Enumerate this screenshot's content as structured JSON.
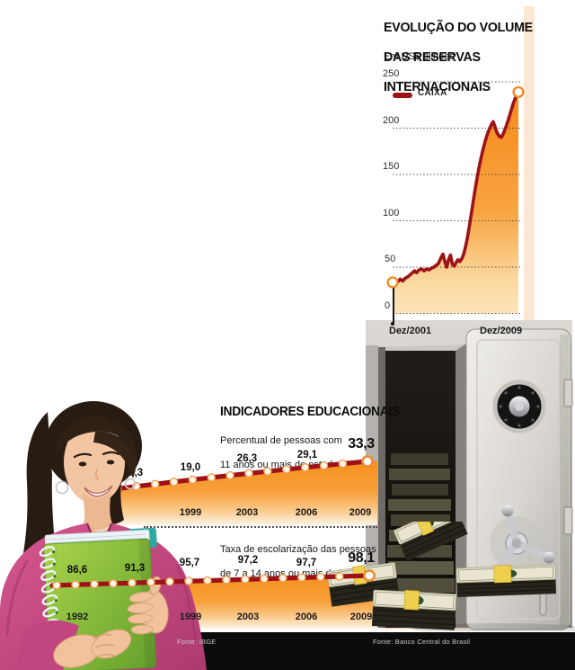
{
  "education": {
    "heading": "INDICADORES EDUCACIONAIS"
  },
  "footer": {
    "sources": [
      "Fonte: IBGE",
      "Fonte: Banco Central do Brasil"
    ]
  },
  "colors": {
    "line_dark_red": "#9C1217",
    "area_orange": "#F5891B",
    "accent_peach": "#FCE8D2",
    "footer_black": "#0C0C0C",
    "bead_ring": "#F19A49"
  },
  "chart_data": [
    {
      "type": "area",
      "title_lines": [
        "EVOLUÇÃO DO VOLUME",
        "DAS RESERVAS",
        "INTERNACIONAIS"
      ],
      "subtitle": "Em US$ bilhões",
      "legend_label": "CAIXA",
      "legend_position": "top-left-inside",
      "grid": "dotted-horizontal",
      "ylim": [
        0,
        250
      ],
      "y_tick_labels": [
        "250",
        "200",
        "150",
        "100",
        "50",
        "0"
      ],
      "x_start_label": "Dez/2001",
      "x_end_label": "Dez/2009",
      "points": [
        [
          0.0,
          33.5
        ],
        [
          0.02,
          36
        ],
        [
          0.04,
          34
        ],
        [
          0.06,
          37
        ],
        [
          0.08,
          35
        ],
        [
          0.1,
          38
        ],
        [
          0.125,
          40
        ],
        [
          0.15,
          43
        ],
        [
          0.175,
          46
        ],
        [
          0.19,
          44
        ],
        [
          0.21,
          47
        ],
        [
          0.23,
          48
        ],
        [
          0.25,
          46
        ],
        [
          0.27,
          48
        ],
        [
          0.29,
          47
        ],
        [
          0.31,
          49
        ],
        [
          0.33,
          50
        ],
        [
          0.345,
          52
        ],
        [
          0.36,
          53
        ],
        [
          0.385,
          60
        ],
        [
          0.4,
          64
        ],
        [
          0.415,
          56
        ],
        [
          0.43,
          50
        ],
        [
          0.445,
          58
        ],
        [
          0.46,
          63
        ],
        [
          0.475,
          53
        ],
        [
          0.49,
          51
        ],
        [
          0.505,
          55
        ],
        [
          0.52,
          58
        ],
        [
          0.535,
          56
        ],
        [
          0.55,
          59
        ],
        [
          0.565,
          64
        ],
        [
          0.58,
          72
        ],
        [
          0.595,
          82
        ],
        [
          0.61,
          94
        ],
        [
          0.625,
          107
        ],
        [
          0.64,
          120
        ],
        [
          0.655,
          133
        ],
        [
          0.67,
          145
        ],
        [
          0.685,
          156
        ],
        [
          0.7,
          166
        ],
        [
          0.715,
          175
        ],
        [
          0.73,
          183
        ],
        [
          0.745,
          190
        ],
        [
          0.76,
          196
        ],
        [
          0.775,
          201
        ],
        [
          0.79,
          205
        ],
        [
          0.8,
          207
        ],
        [
          0.815,
          201
        ],
        [
          0.83,
          195
        ],
        [
          0.85,
          191
        ],
        [
          0.865,
          190
        ],
        [
          0.88,
          194
        ],
        [
          0.9,
          201
        ],
        [
          0.92,
          209
        ],
        [
          0.94,
          218
        ],
        [
          0.96,
          227
        ],
        [
          0.98,
          234
        ],
        [
          1.0,
          239
        ]
      ]
    },
    {
      "type": "line",
      "title_lines": [
        "Percentual de pessoas com",
        "11 anos ou mais de  estudo"
      ],
      "values": [
        16.3,
        19.0,
        26.3,
        29.1,
        33.3
      ],
      "value_labels": [
        "16,3",
        "19,0",
        "26,3",
        "29,1",
        "33,3"
      ],
      "x_tick_labels": [
        "1999",
        "2003",
        "2006",
        "2009"
      ]
    },
    {
      "type": "line",
      "title_lines": [
        "Taxa de escolarização das pessoas",
        "de 7 a 14 anos ou mais de idade"
      ],
      "values": [
        86.6,
        91.3,
        95.7,
        97.2,
        97.7,
        98.1
      ],
      "value_labels": [
        "86,6",
        "91,3",
        "95,7",
        "97,2",
        "97,7",
        "98,1"
      ],
      "x_tick_labels": [
        "1992",
        "1999",
        "2003",
        "2006",
        "2009"
      ]
    }
  ]
}
